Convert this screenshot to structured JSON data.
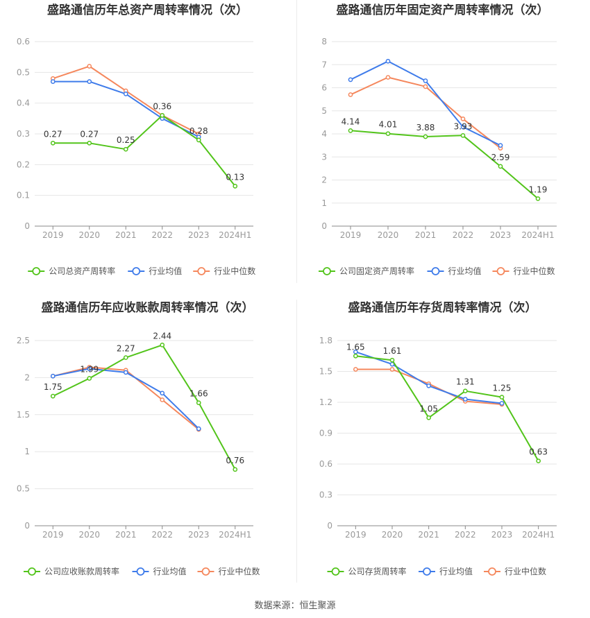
{
  "colors": {
    "company": "#52c41a",
    "industry_avg": "#3e7bea",
    "industry_median": "#f5875c",
    "grid": "#e6e6e6",
    "axis": "#999999",
    "text": "#333333"
  },
  "footer": {
    "source": "数据来源：恒生聚源"
  },
  "chart_data": [
    {
      "type": "line",
      "title": "盛路通信历年总资产周转率情况（次）",
      "categories": [
        "2019",
        "2020",
        "2021",
        "2022",
        "2023",
        "2024H1"
      ],
      "y_ticks": [
        "0",
        "0.1",
        "0.2",
        "0.3",
        "0.4",
        "0.5",
        "0.6"
      ],
      "ylim": [
        0,
        0.6
      ],
      "legend": [
        "公司总资产周转率",
        "行业均值",
        "行业中位数"
      ],
      "series": [
        {
          "name": "公司总资产周转率",
          "values": [
            0.27,
            0.27,
            0.25,
            0.36,
            0.28,
            0.13
          ],
          "labels": [
            "0.27",
            "0.27",
            "0.25",
            "0.36",
            "0.28",
            "0.13"
          ]
        },
        {
          "name": "行业均值",
          "values": [
            0.47,
            0.47,
            0.43,
            0.35,
            0.29,
            null
          ]
        },
        {
          "name": "行业中位数",
          "values": [
            0.48,
            0.52,
            0.44,
            0.36,
            0.3,
            null
          ]
        }
      ]
    },
    {
      "type": "line",
      "title": "盛路通信历年固定资产周转率情况（次）",
      "categories": [
        "2019",
        "2020",
        "2021",
        "2022",
        "2023",
        "2024H1"
      ],
      "y_ticks": [
        "0",
        "1",
        "2",
        "3",
        "4",
        "5",
        "6",
        "7",
        "8"
      ],
      "ylim": [
        0,
        8
      ],
      "legend": [
        "公司固定资产周转率",
        "行业均值",
        "行业中位数"
      ],
      "series": [
        {
          "name": "公司固定资产周转率",
          "values": [
            4.14,
            4.01,
            3.88,
            3.93,
            2.59,
            1.19
          ],
          "labels": [
            "4.14",
            "4.01",
            "3.88",
            "3.93",
            "2.59",
            "1.19"
          ]
        },
        {
          "name": "行业均值",
          "values": [
            6.35,
            7.15,
            6.3,
            4.3,
            3.5,
            null
          ]
        },
        {
          "name": "行业中位数",
          "values": [
            5.7,
            6.45,
            6.05,
            4.65,
            3.38,
            null
          ]
        }
      ]
    },
    {
      "type": "line",
      "title": "盛路通信历年应收账款周转率情况（次）",
      "categories": [
        "2019",
        "2020",
        "2021",
        "2022",
        "2023",
        "2024H1"
      ],
      "y_ticks": [
        "0",
        "0.5",
        "1",
        "1.5",
        "2",
        "2.5"
      ],
      "ylim": [
        0,
        2.5
      ],
      "legend": [
        "公司应收账款周转率",
        "行业均值",
        "行业中位数"
      ],
      "series": [
        {
          "name": "公司应收账款周转率",
          "values": [
            1.75,
            1.99,
            2.27,
            2.44,
            1.66,
            0.76
          ],
          "labels": [
            "1.75",
            "1.99",
            "2.27",
            "2.44",
            "1.66",
            "0.76"
          ]
        },
        {
          "name": "行业均值",
          "values": [
            2.02,
            2.12,
            2.07,
            1.79,
            1.31,
            null
          ]
        },
        {
          "name": "行业中位数",
          "values": [
            2.02,
            2.14,
            2.1,
            1.7,
            1.3,
            null
          ]
        }
      ]
    },
    {
      "type": "line",
      "title": "盛路通信历年存货周转率情况（次）",
      "categories": [
        "2019",
        "2020",
        "2021",
        "2022",
        "2023",
        "2024H1"
      ],
      "y_ticks": [
        "0",
        "0.3",
        "0.6",
        "0.9",
        "1.2",
        "1.5",
        "1.8"
      ],
      "ylim": [
        0,
        1.8
      ],
      "legend": [
        "公司存货周转率",
        "行业均值",
        "行业中位数"
      ],
      "series": [
        {
          "name": "公司存货周转率",
          "values": [
            1.65,
            1.61,
            1.05,
            1.31,
            1.25,
            0.63
          ],
          "labels": [
            "1.65",
            "1.61",
            "1.05",
            "1.31",
            "1.25",
            "0.63"
          ]
        },
        {
          "name": "行业均值",
          "values": [
            1.69,
            1.57,
            1.36,
            1.23,
            1.19,
            null
          ]
        },
        {
          "name": "行业中位数",
          "values": [
            1.52,
            1.52,
            1.38,
            1.21,
            1.18,
            null
          ]
        }
      ]
    }
  ]
}
